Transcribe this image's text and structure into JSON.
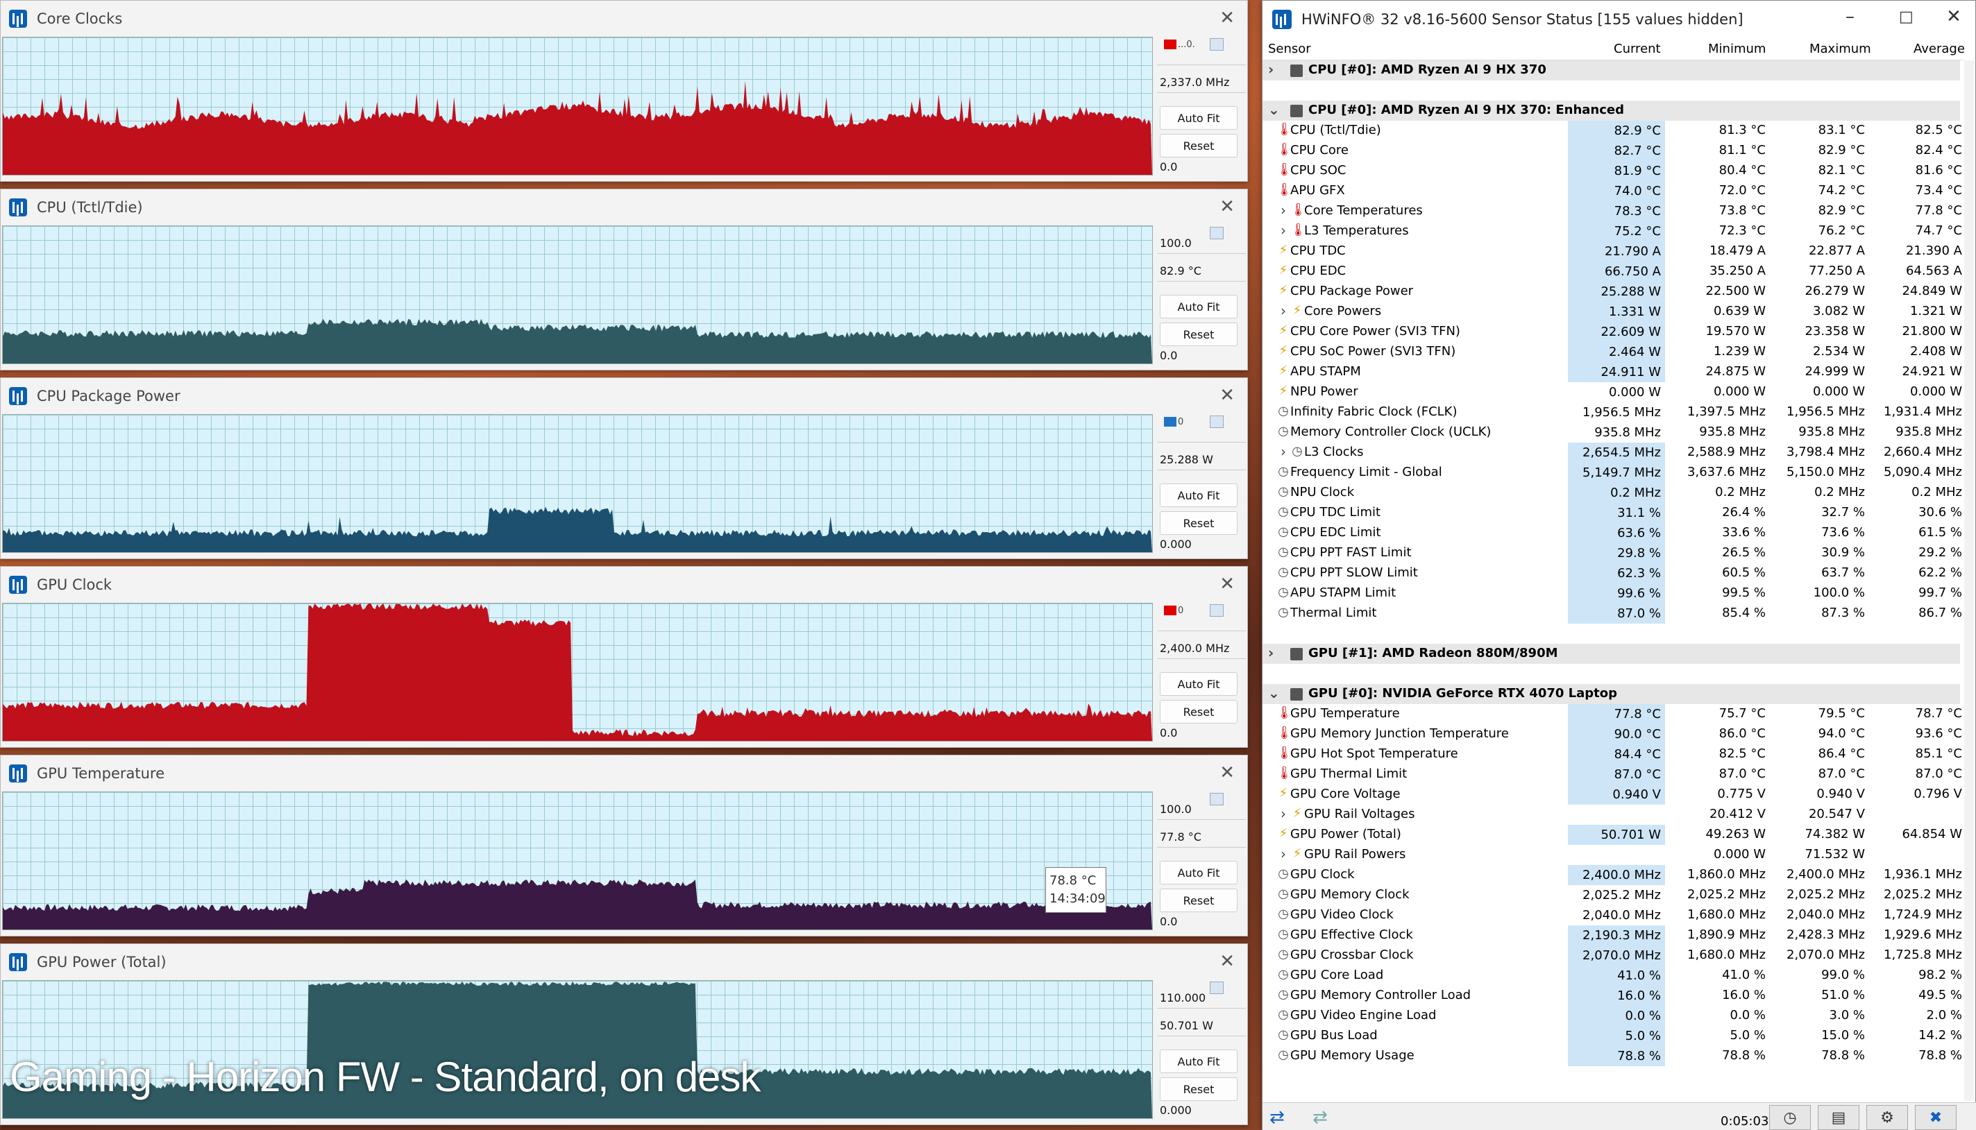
{
  "graphs": [
    {
      "title": "Core Clocks",
      "swatch_color": "#e00000",
      "swatch_text": "...0.",
      "max": "",
      "current": "2,337.0 MHz",
      "min": "0.0",
      "fill": "#c0101c",
      "auto_fit": "Auto Fit",
      "reset": "Reset"
    },
    {
      "title": "CPU (Tctl/Tdie)",
      "swatch_color": "",
      "swatch_text": "",
      "max": "100.0",
      "current": "82.9 °C",
      "min": "0.0",
      "fill": "#2f5a62",
      "auto_fit": "Auto Fit",
      "reset": "Reset"
    },
    {
      "title": "CPU Package Power",
      "swatch_color": "#1f74c8",
      "swatch_text": "0",
      "max": "",
      "current": "25.288 W",
      "min": "0.000",
      "fill": "#1d4f6e",
      "auto_fit": "Auto Fit",
      "reset": "Reset"
    },
    {
      "title": "GPU Clock",
      "swatch_color": "#e00000",
      "swatch_text": "0",
      "max": "",
      "current": "2,400.0 MHz",
      "min": "0.0",
      "fill": "#c0101c",
      "auto_fit": "Auto Fit",
      "reset": "Reset"
    },
    {
      "title": "GPU Temperature",
      "swatch_color": "",
      "swatch_text": "",
      "max": "100.0",
      "current": "77.8 °C",
      "min": "0.0",
      "fill": "#3a1a44",
      "auto_fit": "Auto Fit",
      "reset": "Reset"
    },
    {
      "title": "GPU Power (Total)",
      "swatch_color": "",
      "swatch_text": "",
      "max": "110.000",
      "current": "50.701 W",
      "min": "0.000",
      "fill": "#2f5a62",
      "auto_fit": "Auto Fit",
      "reset": "Reset"
    }
  ],
  "tooltip": {
    "value": "78.8 °C",
    "time": "14:34:09"
  },
  "overlay_caption": "Gaming - Horizon FW - Standard, on desk",
  "hwinfo": {
    "title": "HWiNFO® 32 v8.16-5600 Sensor Status [155 values hidden]",
    "columns": {
      "sensor": "Sensor",
      "current": "Current",
      "minimum": "Minimum",
      "maximum": "Maximum",
      "average": "Average"
    },
    "rows": [
      {
        "type": "group",
        "exp": ">",
        "name": "CPU [#0]: AMD Ryzen AI 9 HX 370"
      },
      {
        "type": "blank"
      },
      {
        "type": "group",
        "exp": "v",
        "name": "CPU [#0]: AMD Ryzen AI 9 HX 370: Enhanced"
      },
      {
        "t": "red",
        "name": "CPU (Tctl/Tdie)",
        "cur": "82.9 °C",
        "min": "81.3 °C",
        "max": "83.1 °C",
        "avg": "82.5 °C"
      },
      {
        "t": "red",
        "name": "CPU Core",
        "cur": "82.7 °C",
        "min": "81.1 °C",
        "max": "82.9 °C",
        "avg": "82.4 °C"
      },
      {
        "t": "red",
        "name": "CPU SOC",
        "cur": "81.9 °C",
        "min": "80.4 °C",
        "max": "82.1 °C",
        "avg": "81.6 °C"
      },
      {
        "t": "red",
        "name": "APU GFX",
        "cur": "74.0 °C",
        "min": "72.0 °C",
        "max": "74.2 °C",
        "avg": "73.4 °C"
      },
      {
        "t": "red",
        "sub": true,
        "name": "Core Temperatures",
        "cur": "78.3 °C",
        "min": "73.8 °C",
        "max": "82.9 °C",
        "avg": "77.8 °C"
      },
      {
        "t": "red",
        "sub": true,
        "name": "L3 Temperatures",
        "cur": "75.2 °C",
        "min": "72.3 °C",
        "max": "76.2 °C",
        "avg": "74.7 °C"
      },
      {
        "t": "yel",
        "name": "CPU TDC",
        "cur": "21.790 A",
        "min": "18.479 A",
        "max": "22.877 A",
        "avg": "21.390 A"
      },
      {
        "t": "yel",
        "name": "CPU EDC",
        "cur": "66.750 A",
        "min": "35.250 A",
        "max": "77.250 A",
        "avg": "64.563 A"
      },
      {
        "t": "yel",
        "name": "CPU Package Power",
        "cur": "25.288 W",
        "min": "22.500 W",
        "max": "26.279 W",
        "avg": "24.849 W"
      },
      {
        "t": "yel",
        "sub": true,
        "name": "Core Powers",
        "cur": "1.331 W",
        "min": "0.639 W",
        "max": "3.082 W",
        "avg": "1.321 W"
      },
      {
        "t": "yel",
        "name": "CPU Core Power (SVI3 TFN)",
        "cur": "22.609 W",
        "min": "19.570 W",
        "max": "23.358 W",
        "avg": "21.800 W"
      },
      {
        "t": "yel",
        "name": "CPU SoC Power (SVI3 TFN)",
        "cur": "2.464 W",
        "min": "1.239 W",
        "max": "2.534 W",
        "avg": "2.408 W"
      },
      {
        "t": "yel",
        "name": "APU STAPM",
        "cur": "24.911 W",
        "min": "24.875 W",
        "max": "24.999 W",
        "avg": "24.921 W"
      },
      {
        "t": "yel",
        "name": "NPU Power",
        "cur": "0.000 W",
        "min": "0.000 W",
        "max": "0.000 W",
        "avg": "0.000 W",
        "nohl": true
      },
      {
        "t": "clk",
        "name": "Infinity Fabric Clock (FCLK)",
        "cur": "1,956.5 MHz",
        "min": "1,397.5 MHz",
        "max": "1,956.5 MHz",
        "avg": "1,931.4 MHz",
        "nohl": true
      },
      {
        "t": "clk",
        "name": "Memory Controller Clock (UCLK)",
        "cur": "935.8 MHz",
        "min": "935.8 MHz",
        "max": "935.8 MHz",
        "avg": "935.8 MHz",
        "nohl": true
      },
      {
        "t": "clk",
        "sub": true,
        "name": "L3 Clocks",
        "cur": "2,654.5 MHz",
        "min": "2,588.9 MHz",
        "max": "3,798.4 MHz",
        "avg": "2,660.4 MHz"
      },
      {
        "t": "clk",
        "name": "Frequency Limit - Global",
        "cur": "5,149.7 MHz",
        "min": "3,637.6 MHz",
        "max": "5,150.0 MHz",
        "avg": "5,090.4 MHz"
      },
      {
        "t": "clk",
        "name": "NPU Clock",
        "cur": "0.2 MHz",
        "min": "0.2 MHz",
        "max": "0.2 MHz",
        "avg": "0.2 MHz"
      },
      {
        "t": "clk",
        "name": "CPU TDC Limit",
        "cur": "31.1 %",
        "min": "26.4 %",
        "max": "32.7 %",
        "avg": "30.6 %"
      },
      {
        "t": "clk",
        "name": "CPU EDC Limit",
        "cur": "63.6 %",
        "min": "33.6 %",
        "max": "73.6 %",
        "avg": "61.5 %"
      },
      {
        "t": "clk",
        "name": "CPU PPT FAST Limit",
        "cur": "29.8 %",
        "min": "26.5 %",
        "max": "30.9 %",
        "avg": "29.2 %"
      },
      {
        "t": "clk",
        "name": "CPU PPT SLOW Limit",
        "cur": "62.3 %",
        "min": "60.5 %",
        "max": "63.7 %",
        "avg": "62.2 %"
      },
      {
        "t": "clk",
        "name": "APU STAPM Limit",
        "cur": "99.6 %",
        "min": "99.5 %",
        "max": "100.0 %",
        "avg": "99.7 %"
      },
      {
        "t": "clk",
        "name": "Thermal Limit",
        "cur": "87.0 %",
        "min": "85.4 %",
        "max": "87.3 %",
        "avg": "86.7 %"
      },
      {
        "type": "blank"
      },
      {
        "type": "group",
        "exp": ">",
        "name": "GPU [#1]: AMD Radeon 880M/890M"
      },
      {
        "type": "blank"
      },
      {
        "type": "group",
        "exp": "v",
        "name": "GPU [#0]: NVIDIA GeForce RTX 4070 Laptop"
      },
      {
        "t": "red",
        "name": "GPU Temperature",
        "cur": "77.8 °C",
        "min": "75.7 °C",
        "max": "79.5 °C",
        "avg": "78.7 °C"
      },
      {
        "t": "red",
        "name": "GPU Memory Junction Temperature",
        "cur": "90.0 °C",
        "min": "86.0 °C",
        "max": "94.0 °C",
        "avg": "93.6 °C"
      },
      {
        "t": "red",
        "name": "GPU Hot Spot Temperature",
        "cur": "84.4 °C",
        "min": "82.5 °C",
        "max": "86.4 °C",
        "avg": "85.1 °C"
      },
      {
        "t": "red",
        "name": "GPU Thermal Limit",
        "cur": "87.0 °C",
        "min": "87.0 °C",
        "max": "87.0 °C",
        "avg": "87.0 °C"
      },
      {
        "t": "yel",
        "name": "GPU Core Voltage",
        "cur": "0.940 V",
        "min": "0.775 V",
        "max": "0.940 V",
        "avg": "0.796 V"
      },
      {
        "t": "yel",
        "sub": true,
        "name": "GPU Rail Voltages",
        "cur": "",
        "min": "20.412 V",
        "max": "20.547 V",
        "avg": ""
      },
      {
        "t": "yel",
        "name": "GPU Power (Total)",
        "cur": "50.701 W",
        "min": "49.263 W",
        "max": "74.382 W",
        "avg": "64.854 W"
      },
      {
        "t": "yel",
        "sub": true,
        "name": "GPU Rail Powers",
        "cur": "",
        "min": "0.000 W",
        "max": "71.532 W",
        "avg": ""
      },
      {
        "t": "clk",
        "name": "GPU Clock",
        "cur": "2,400.0 MHz",
        "min": "1,860.0 MHz",
        "max": "2,400.0 MHz",
        "avg": "1,936.1 MHz"
      },
      {
        "t": "clk",
        "name": "GPU Memory Clock",
        "cur": "2,025.2 MHz",
        "min": "2,025.2 MHz",
        "max": "2,025.2 MHz",
        "avg": "2,025.2 MHz",
        "nohl": true
      },
      {
        "t": "clk",
        "name": "GPU Video Clock",
        "cur": "2,040.0 MHz",
        "min": "1,680.0 MHz",
        "max": "2,040.0 MHz",
        "avg": "1,724.9 MHz",
        "nohl": true
      },
      {
        "t": "clk",
        "name": "GPU Effective Clock",
        "cur": "2,190.3 MHz",
        "min": "1,890.9 MHz",
        "max": "2,428.3 MHz",
        "avg": "1,929.6 MHz"
      },
      {
        "t": "clk",
        "name": "GPU Crossbar Clock",
        "cur": "2,070.0 MHz",
        "min": "1,680.0 MHz",
        "max": "2,070.0 MHz",
        "avg": "1,725.8 MHz"
      },
      {
        "t": "clk",
        "name": "GPU Core Load",
        "cur": "41.0 %",
        "min": "41.0 %",
        "max": "99.0 %",
        "avg": "98.2 %"
      },
      {
        "t": "clk",
        "name": "GPU Memory Controller Load",
        "cur": "16.0 %",
        "min": "16.0 %",
        "max": "51.0 %",
        "avg": "49.5 %"
      },
      {
        "t": "clk",
        "name": "GPU Video Engine Load",
        "cur": "0.0 %",
        "min": "0.0 %",
        "max": "3.0 %",
        "avg": "2.0 %"
      },
      {
        "t": "clk",
        "name": "GPU Bus Load",
        "cur": "5.0 %",
        "min": "5.0 %",
        "max": "15.0 %",
        "avg": "14.2 %"
      },
      {
        "t": "clk",
        "name": "GPU Memory Usage",
        "cur": "78.8 %",
        "min": "78.8 %",
        "max": "78.8 %",
        "avg": "78.8 %"
      }
    ],
    "elapsed": "0:05:03"
  }
}
